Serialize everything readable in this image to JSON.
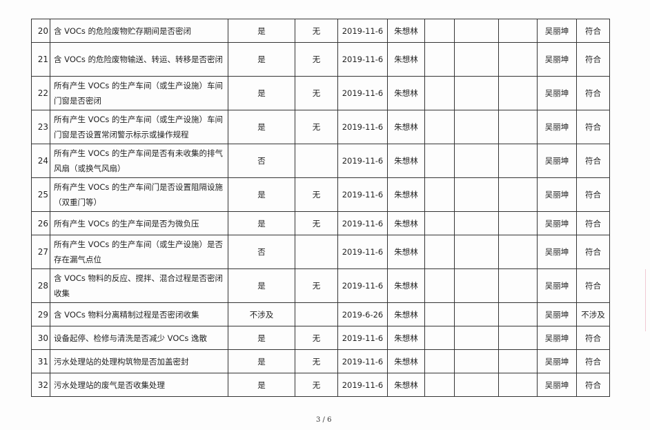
{
  "rows": [
    {
      "no": "20",
      "item": "含 VOCs 的危险废物贮存期间是否密闭",
      "result": "是",
      "issue": "无",
      "date": "2019-11-6",
      "inspector": "朱想林",
      "reviewer": "吴丽坤",
      "conclusion": "符合",
      "tall": false
    },
    {
      "no": "21",
      "item": "含 VOCs 的危险废物输送、转运、转移是否密闭",
      "result": "是",
      "issue": "无",
      "date": "2019-11-6",
      "inspector": "朱想林",
      "reviewer": "吴丽坤",
      "conclusion": "符合",
      "tall": true
    },
    {
      "no": "22",
      "item": "所有产生 VOCs 的生产车间（或生产设施）车间门窗是否密闭",
      "result": "是",
      "issue": "无",
      "date": "2019-11-6",
      "inspector": "朱想林",
      "reviewer": "吴丽坤",
      "conclusion": "符合",
      "tall": true
    },
    {
      "no": "23",
      "item": "所有产生 VOCs 的生产车间（或生产设施）车间门窗是否设置常闭警示标示或操作规程",
      "result": "是",
      "issue": "无",
      "date": "2019-11-6",
      "inspector": "朱想林",
      "reviewer": "吴丽坤",
      "conclusion": "符合",
      "tall": true
    },
    {
      "no": "24",
      "item": "所有产生 VOCs 的生产车间是否有未收集的排气风扇（或换气风扇）",
      "result": "否",
      "issue": "",
      "date": "2019-11-6",
      "inspector": "朱想林",
      "reviewer": "吴丽坤",
      "conclusion": "符合",
      "tall": true
    },
    {
      "no": "25",
      "item": "所有产生 VOCs 的生产车间门是否设置阻隔设施（双重门等）",
      "result": "是",
      "issue": "无",
      "date": "2019-11-6",
      "inspector": "朱想林",
      "reviewer": "吴丽坤",
      "conclusion": "符合",
      "tall": true
    },
    {
      "no": "26",
      "item": "所有产生 VOCs 的生产车间是否为微负压",
      "result": "是",
      "issue": "无",
      "date": "2019-11-6",
      "inspector": "朱想林",
      "reviewer": "吴丽坤",
      "conclusion": "符合",
      "tall": false
    },
    {
      "no": "27",
      "item": "所有产生 VOCs 的生产车间（或生产设施）是否存在漏气点位",
      "result": "否",
      "issue": "",
      "date": "2019-11-6",
      "inspector": "朱想林",
      "reviewer": "吴丽坤",
      "conclusion": "符合",
      "tall": true
    },
    {
      "no": "28",
      "item": "含 VOCs 物料的反应、搅拌、混合过程是否密闭收集",
      "result": "是",
      "issue": "无",
      "date": "2019-11-6",
      "inspector": "朱想林",
      "reviewer": "吴丽坤",
      "conclusion": "符合",
      "tall": true
    },
    {
      "no": "29",
      "item": "含 VOCs 物料分离精制过程是否密闭收集",
      "result": "不涉及",
      "issue": "",
      "date": "2019-6-26",
      "inspector": "朱想林",
      "reviewer": "吴丽坤",
      "conclusion": "不涉及",
      "tall": false
    },
    {
      "no": "30",
      "item": "设备起停、检修与清洗是否减少 VOCs 逸散",
      "result": "是",
      "issue": "无",
      "date": "2019-11-6",
      "inspector": "朱想林",
      "reviewer": "吴丽坤",
      "conclusion": "符合",
      "tall": false
    },
    {
      "no": "31",
      "item": "污水处理站的处理构筑物是否加盖密封",
      "result": "是",
      "issue": "无",
      "date": "2019-11-6",
      "inspector": "朱想林",
      "reviewer": "吴丽坤",
      "conclusion": "符合",
      "tall": false
    },
    {
      "no": "32",
      "item": "污水处理站的废气是否收集处理",
      "result": "是",
      "issue": "无",
      "date": "2019-11-6",
      "inspector": "朱想林",
      "reviewer": "吴丽坤",
      "conclusion": "符合",
      "tall": false
    }
  ],
  "page_number": "3 / 6"
}
